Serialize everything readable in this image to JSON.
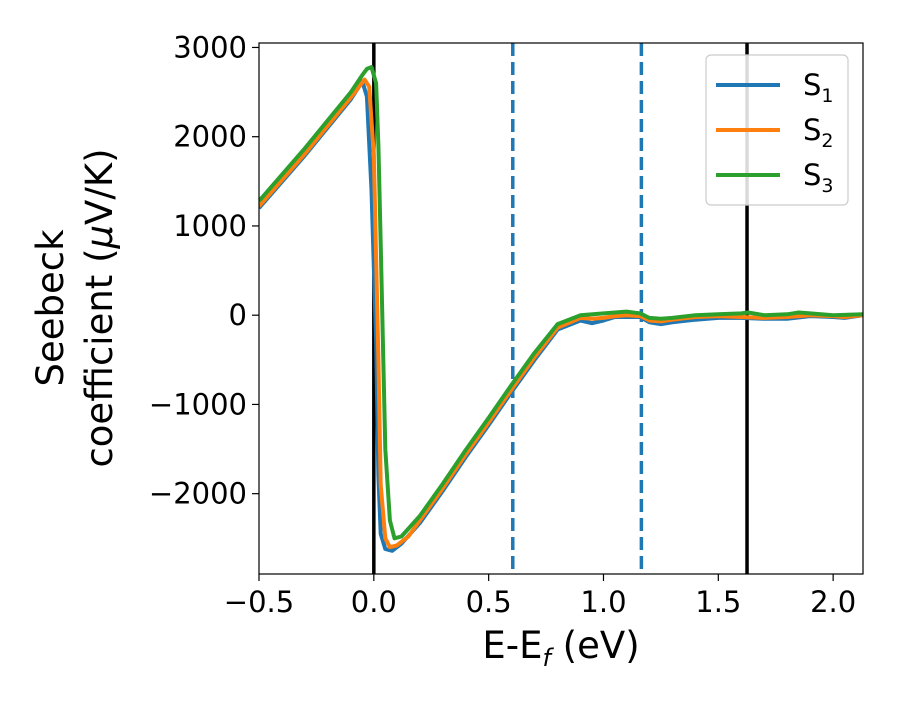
{
  "chart_data": {
    "type": "line",
    "xlabel": "E-E",
    "xlabel_sub": "f",
    "xlabel_unit": " (eV)",
    "ylabel_line1": "Seebeck",
    "ylabel_line2_pre": "coefficient  (",
    "ylabel_line2_mu": "μ",
    "ylabel_line2_post": "V/K)",
    "xlim": [
      -0.5,
      2.13
    ],
    "ylim": [
      -2900,
      3050
    ],
    "x_ticks": [
      -0.5,
      0.0,
      0.5,
      1.0,
      1.5,
      2.0
    ],
    "x_tick_labels": [
      "−0.5",
      "0.0",
      "0.5",
      "1.0",
      "1.5",
      "2.0"
    ],
    "y_ticks": [
      3000,
      2000,
      1000,
      0,
      -1000,
      -2000
    ],
    "y_tick_labels": [
      "3000",
      "2000",
      "1000",
      "0",
      "−1000",
      "−2000"
    ],
    "grid": false,
    "legend_position": "top-right",
    "series": [
      {
        "name": "S",
        "sub": "1",
        "color": "#1f77b4",
        "points": [
          [
            -0.5,
            1200
          ],
          [
            -0.3,
            1790
          ],
          [
            -0.1,
            2420
          ],
          [
            -0.05,
            2620
          ],
          [
            -0.03,
            2450
          ],
          [
            -0.01,
            1400
          ],
          [
            0.01,
            -300
          ],
          [
            0.02,
            -1800
          ],
          [
            0.03,
            -2450
          ],
          [
            0.05,
            -2620
          ],
          [
            0.08,
            -2640
          ],
          [
            0.12,
            -2560
          ],
          [
            0.2,
            -2330
          ],
          [
            0.3,
            -1970
          ],
          [
            0.4,
            -1590
          ],
          [
            0.5,
            -1230
          ],
          [
            0.6,
            -860
          ],
          [
            0.7,
            -500
          ],
          [
            0.8,
            -160
          ],
          [
            0.9,
            -60
          ],
          [
            0.95,
            -90
          ],
          [
            1.0,
            -60
          ],
          [
            1.05,
            -20
          ],
          [
            1.1,
            -20
          ],
          [
            1.16,
            -20
          ],
          [
            1.2,
            -80
          ],
          [
            1.25,
            -100
          ],
          [
            1.3,
            -80
          ],
          [
            1.4,
            -50
          ],
          [
            1.5,
            -30
          ],
          [
            1.6,
            -30
          ],
          [
            1.7,
            -40
          ],
          [
            1.8,
            -40
          ],
          [
            1.9,
            -10
          ],
          [
            2.0,
            -20
          ],
          [
            2.05,
            -30
          ],
          [
            2.13,
            0
          ]
        ]
      },
      {
        "name": "S",
        "sub": "2",
        "color": "#ff7f0e",
        "points": [
          [
            -0.5,
            1220
          ],
          [
            -0.3,
            1810
          ],
          [
            -0.1,
            2440
          ],
          [
            -0.04,
            2640
          ],
          [
            -0.02,
            2560
          ],
          [
            0.0,
            1800
          ],
          [
            0.02,
            -500
          ],
          [
            0.03,
            -1900
          ],
          [
            0.05,
            -2500
          ],
          [
            0.07,
            -2600
          ],
          [
            0.1,
            -2580
          ],
          [
            0.15,
            -2480
          ],
          [
            0.2,
            -2300
          ],
          [
            0.3,
            -1940
          ],
          [
            0.4,
            -1560
          ],
          [
            0.5,
            -1200
          ],
          [
            0.6,
            -830
          ],
          [
            0.7,
            -470
          ],
          [
            0.8,
            -140
          ],
          [
            0.9,
            -30
          ],
          [
            0.95,
            -40
          ],
          [
            1.0,
            -30
          ],
          [
            1.05,
            -10
          ],
          [
            1.1,
            0
          ],
          [
            1.16,
            -10
          ],
          [
            1.2,
            -60
          ],
          [
            1.25,
            -70
          ],
          [
            1.3,
            -50
          ],
          [
            1.4,
            -20
          ],
          [
            1.5,
            -10
          ],
          [
            1.6,
            -20
          ],
          [
            1.7,
            -30
          ],
          [
            1.8,
            -20
          ],
          [
            1.9,
            0
          ],
          [
            2.0,
            -10
          ],
          [
            2.05,
            -20
          ],
          [
            2.13,
            0
          ]
        ]
      },
      {
        "name": "S",
        "sub": "3",
        "color": "#2ca02c",
        "points": [
          [
            -0.5,
            1280
          ],
          [
            -0.3,
            1870
          ],
          [
            -0.1,
            2500
          ],
          [
            -0.05,
            2690
          ],
          [
            -0.03,
            2760
          ],
          [
            -0.01,
            2780
          ],
          [
            0.01,
            2600
          ],
          [
            0.02,
            1900
          ],
          [
            0.03,
            800
          ],
          [
            0.05,
            -1500
          ],
          [
            0.07,
            -2300
          ],
          [
            0.09,
            -2500
          ],
          [
            0.12,
            -2480
          ],
          [
            0.2,
            -2250
          ],
          [
            0.3,
            -1890
          ],
          [
            0.4,
            -1510
          ],
          [
            0.5,
            -1150
          ],
          [
            0.6,
            -780
          ],
          [
            0.7,
            -420
          ],
          [
            0.8,
            -100
          ],
          [
            0.9,
            0
          ],
          [
            1.0,
            20
          ],
          [
            1.1,
            40
          ],
          [
            1.16,
            20
          ],
          [
            1.2,
            -30
          ],
          [
            1.25,
            -40
          ],
          [
            1.3,
            -30
          ],
          [
            1.4,
            0
          ],
          [
            1.5,
            10
          ],
          [
            1.6,
            20
          ],
          [
            1.63,
            30
          ],
          [
            1.7,
            0
          ],
          [
            1.8,
            10
          ],
          [
            1.85,
            30
          ],
          [
            1.9,
            20
          ],
          [
            2.0,
            0
          ],
          [
            2.13,
            10
          ]
        ]
      }
    ],
    "vertical_lines": [
      {
        "x": 0.0,
        "style": "solid",
        "color": "#000000"
      },
      {
        "x": 1.625,
        "style": "solid",
        "color": "#000000"
      },
      {
        "x": 0.605,
        "style": "dashed",
        "color": "#1f77b4"
      },
      {
        "x": 1.165,
        "style": "dashed",
        "color": "#1f77b4"
      }
    ]
  }
}
